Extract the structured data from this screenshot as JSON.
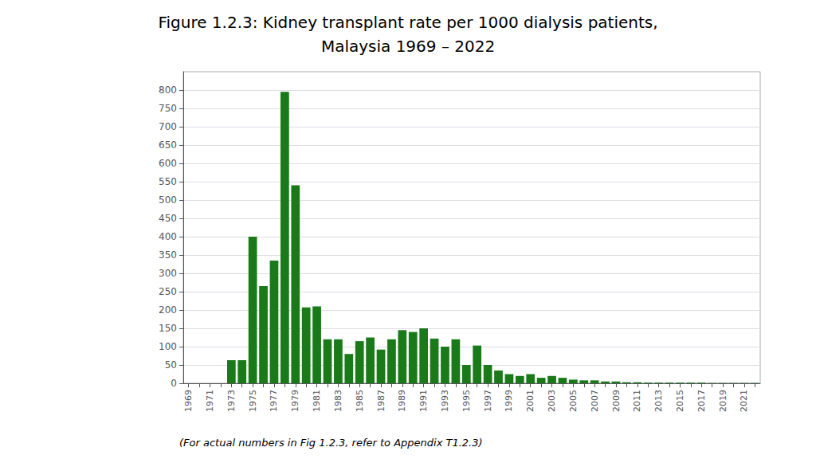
{
  "chart_data": {
    "type": "bar",
    "title": "Figure 1.2.3: Kidney transplant rate per 1000 dialysis patients,\nMalaysia 1969 – 2022",
    "annotations": [
      "(For actual numbers in Fig 1.2.3, refer to Appendix T1.2.3)"
    ],
    "categories": [
      "1969",
      null,
      "1971",
      null,
      "1973",
      null,
      "1975",
      null,
      "1977",
      null,
      "1979",
      null,
      "1981",
      null,
      "1983",
      null,
      "1985",
      null,
      "1987",
      null,
      "1989",
      null,
      "1991",
      null,
      "1993",
      null,
      "1995",
      null,
      "1997",
      null,
      "1999",
      null,
      "2001",
      null,
      "2003",
      null,
      "2005",
      null,
      "2007",
      null,
      "2009",
      null,
      "2011",
      null,
      "2013",
      null,
      "2015",
      null,
      "2017",
      null,
      "2019",
      null,
      "2021",
      null
    ],
    "values": [
      0,
      0,
      0,
      0,
      63,
      63,
      400,
      265,
      335,
      795,
      540,
      207,
      210,
      120,
      120,
      80,
      115,
      125,
      92,
      120,
      145,
      140,
      150,
      122,
      100,
      120,
      50,
      103,
      50,
      35,
      25,
      20,
      25,
      15,
      20,
      15,
      10,
      8,
      8,
      5,
      5,
      3,
      3,
      2,
      2,
      2,
      2,
      2,
      2,
      1,
      1,
      1,
      1,
      1
    ],
    "color": "#1a7a1a",
    "ylim": [
      0,
      850
    ],
    "yticks": [
      0,
      50,
      100,
      150,
      200,
      250,
      300,
      350,
      400,
      450,
      500,
      550,
      600,
      650,
      700,
      750,
      800
    ],
    "grid": true
  }
}
